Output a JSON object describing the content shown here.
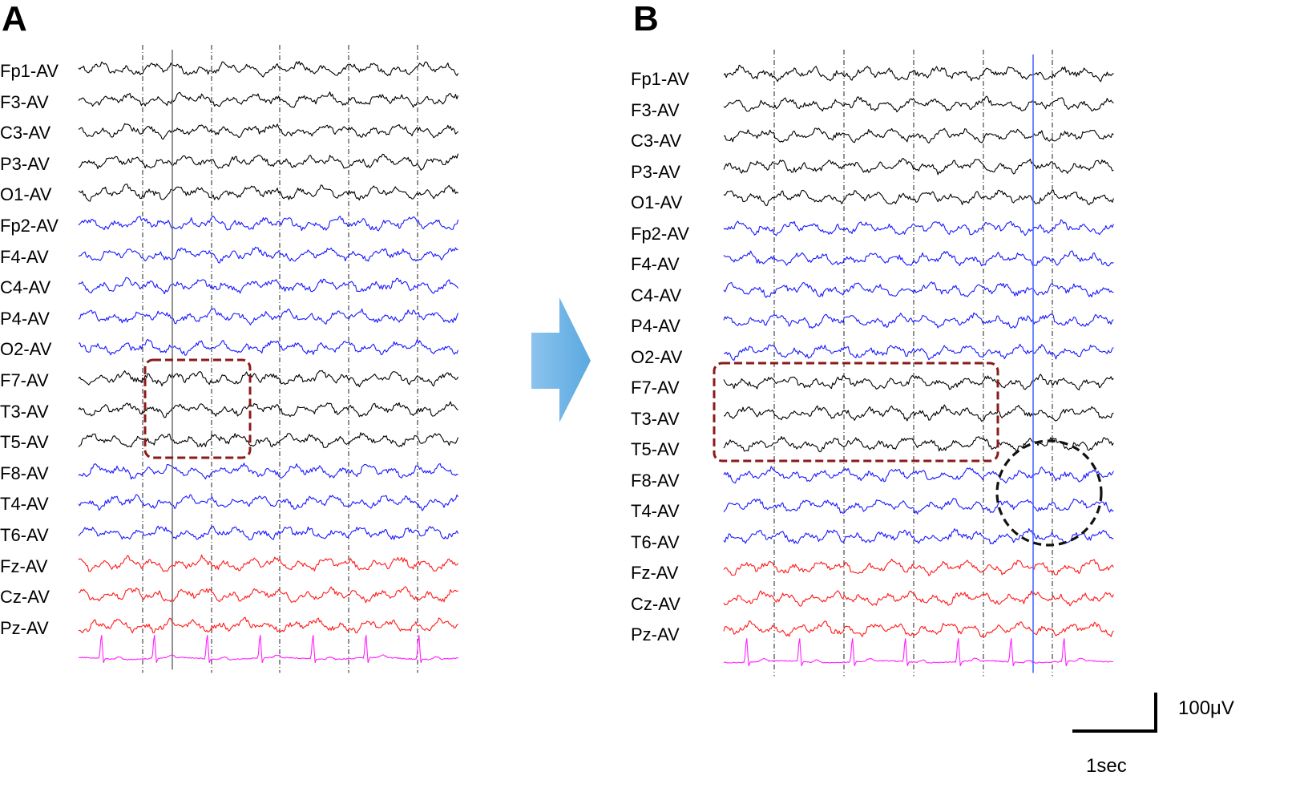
{
  "panels": [
    {
      "id": "A",
      "letter": "A"
    },
    {
      "id": "B",
      "letter": "B"
    }
  ],
  "channels": [
    {
      "label": "Fp1-AV",
      "color": "#000000"
    },
    {
      "label": "F3-AV",
      "color": "#000000"
    },
    {
      "label": "C3-AV",
      "color": "#000000"
    },
    {
      "label": "P3-AV",
      "color": "#000000"
    },
    {
      "label": "O1-AV",
      "color": "#000000"
    },
    {
      "label": "Fp2-AV",
      "color": "#1a1aff"
    },
    {
      "label": "F4-AV",
      "color": "#1a1aff"
    },
    {
      "label": "C4-AV",
      "color": "#1a1aff"
    },
    {
      "label": "P4-AV",
      "color": "#1a1aff"
    },
    {
      "label": "O2-AV",
      "color": "#1a1aff"
    },
    {
      "label": "F7-AV",
      "color": "#000000"
    },
    {
      "label": "T3-AV",
      "color": "#000000"
    },
    {
      "label": "T5-AV",
      "color": "#000000"
    },
    {
      "label": "F8-AV",
      "color": "#1a1aff"
    },
    {
      "label": "T4-AV",
      "color": "#1a1aff"
    },
    {
      "label": "T6-AV",
      "color": "#1a1aff"
    },
    {
      "label": "Fz-AV",
      "color": "#ff1a1a"
    },
    {
      "label": "Cz-AV",
      "color": "#ff1a1a"
    },
    {
      "label": "Pz-AV",
      "color": "#ff1a1a"
    }
  ],
  "ecg_color": "#ff22ff",
  "highlight_color": "#8b1a1a",
  "arrow_color": "#5aa9e0",
  "scale_bar": {
    "amplitude_label": "100μV",
    "time_label": "1sec"
  }
}
